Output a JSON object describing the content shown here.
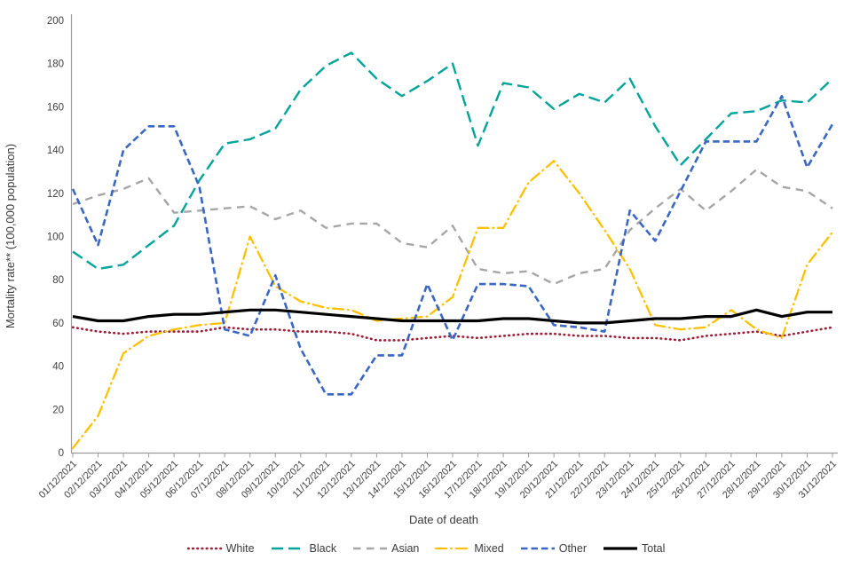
{
  "chart_data": {
    "type": "line",
    "title": "",
    "xlabel": "Date of death",
    "ylabel": "Mortality rate** (100,000 population)",
    "ylim": [
      0,
      200
    ],
    "yticks": [
      0,
      20,
      40,
      60,
      80,
      100,
      120,
      140,
      160,
      180,
      200
    ],
    "grid": false,
    "legend_position": "bottom",
    "axis_color": "#9c9c9c",
    "x": [
      "01/12/2021",
      "02/12/2021",
      "03/12/2021",
      "04/12/2021",
      "05/12/2021",
      "06/12/2021",
      "07/12/2021",
      "08/12/2021",
      "09/12/2021",
      "10/12/2021",
      "11/12/2021",
      "12/12/2021",
      "13/12/2021",
      "14/12/2021",
      "15/12/2021",
      "16/12/2021",
      "17/12/2021",
      "18/12/2021",
      "19/12/2021",
      "20/12/2021",
      "21/12/2021",
      "22/12/2021",
      "23/12/2021",
      "24/12/2021",
      "25/12/2021",
      "26/12/2021",
      "27/12/2021",
      "28/12/2021",
      "29/12/2021",
      "30/12/2021",
      "31/12/2021"
    ],
    "series": [
      {
        "name": "White",
        "color": "#9e1b34",
        "dash": "dot",
        "values": [
          58,
          56,
          55,
          56,
          56,
          56,
          58,
          57,
          57,
          56,
          56,
          55,
          52,
          52,
          53,
          54,
          53,
          54,
          55,
          55,
          54,
          54,
          53,
          53,
          52,
          54,
          55,
          56,
          54,
          56,
          58
        ]
      },
      {
        "name": "Black",
        "color": "#00a499",
        "dash": "longdash",
        "values": [
          93,
          85,
          87,
          96,
          105,
          126,
          143,
          145,
          150,
          168,
          179,
          185,
          173,
          165,
          172,
          180,
          142,
          171,
          169,
          159,
          166,
          162,
          173,
          151,
          133,
          145,
          157,
          158,
          163,
          162,
          173
        ]
      },
      {
        "name": "Asian",
        "color": "#a6a6a6",
        "dash": "dash",
        "values": [
          115,
          119,
          122,
          127,
          111,
          112,
          113,
          114,
          108,
          112,
          104,
          106,
          106,
          97,
          95,
          105,
          85,
          83,
          84,
          78,
          83,
          85,
          103,
          113,
          122,
          112,
          121,
          131,
          123,
          121,
          113
        ]
      },
      {
        "name": "Mixed",
        "color": "#ffc000",
        "dash": "dashdot",
        "values": [
          2,
          17,
          46,
          54,
          57,
          59,
          60,
          100,
          77,
          70,
          67,
          66,
          61,
          62,
          63,
          72,
          104,
          104,
          125,
          135,
          120,
          103,
          85,
          59,
          57,
          58,
          66,
          57,
          53,
          87,
          102
        ]
      },
      {
        "name": "Other",
        "color": "#3a66c4",
        "dash": "meddash",
        "values": [
          122,
          96,
          140,
          151,
          151,
          123,
          57,
          54,
          82,
          48,
          27,
          27,
          45,
          45,
          78,
          52,
          78,
          78,
          77,
          59,
          58,
          56,
          112,
          98,
          121,
          144,
          144,
          144,
          165,
          132,
          152
        ]
      },
      {
        "name": "Total",
        "color": "#000000",
        "dash": "solid",
        "values": [
          63,
          61,
          61,
          63,
          64,
          64,
          65,
          66,
          66,
          65,
          64,
          63,
          62,
          61,
          61,
          61,
          61,
          62,
          62,
          61,
          60,
          60,
          61,
          62,
          62,
          63,
          63,
          66,
          63,
          65,
          65
        ]
      }
    ]
  }
}
